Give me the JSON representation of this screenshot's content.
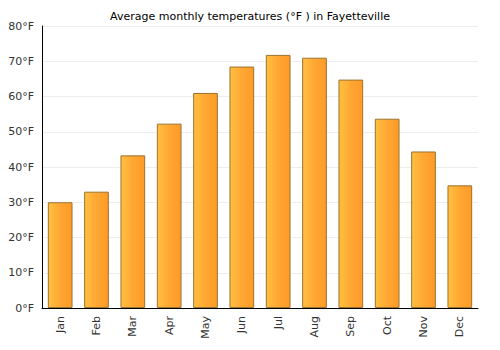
{
  "chart_data": {
    "type": "bar",
    "title": "Average monthly temperatures (°F ) in Fayetteville",
    "categories": [
      "Jan",
      "Feb",
      "Mar",
      "Apr",
      "May",
      "Jun",
      "Jul",
      "Aug",
      "Sep",
      "Oct",
      "Nov",
      "Dec"
    ],
    "values": [
      30,
      33,
      43.3,
      52.3,
      61,
      68.5,
      71.8,
      71,
      64.8,
      53.7,
      44.4,
      34.8
    ],
    "color": "#ffa733",
    "ylim": [
      0,
      80
    ],
    "yticks": [
      {
        "value": 0,
        "label": "0°F"
      },
      {
        "value": 10,
        "label": "10°F"
      },
      {
        "value": 20,
        "label": "20°F"
      },
      {
        "value": 30,
        "label": "30°F"
      },
      {
        "value": 40,
        "label": "40°F"
      },
      {
        "value": 50,
        "label": "50°F"
      },
      {
        "value": 60,
        "label": "60°F"
      },
      {
        "value": 70,
        "label": "70°F"
      },
      {
        "value": 80,
        "label": "80°F"
      }
    ],
    "grid": true
  }
}
